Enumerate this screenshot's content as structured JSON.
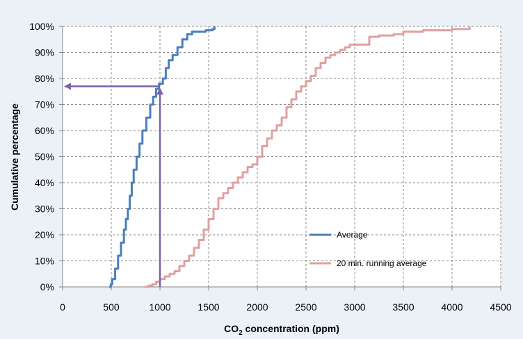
{
  "chart_data": {
    "type": "line",
    "title": "",
    "xlabel": "CO2 concentration (ppm)",
    "xlabel_parts": {
      "main": "CO",
      "sub": "2",
      "rest": " concentration (ppm)"
    },
    "ylabel": "Cumulative percentage",
    "xlim": [
      0,
      4500
    ],
    "ylim": [
      0,
      100
    ],
    "x_ticks": [
      0,
      500,
      1000,
      1500,
      2000,
      2500,
      3000,
      3500,
      4000,
      4500
    ],
    "y_ticks": [
      "0%",
      "10%",
      "20%",
      "30%",
      "40%",
      "50%",
      "60%",
      "70%",
      "80%",
      "90%",
      "100%"
    ],
    "grid": true,
    "legend_position": "bottom-right",
    "series": [
      {
        "name": "Average",
        "color": "#4a7ebb",
        "points": [
          [
            480,
            0
          ],
          [
            495,
            1
          ],
          [
            510,
            3
          ],
          [
            540,
            7
          ],
          [
            570,
            12
          ],
          [
            600,
            17
          ],
          [
            630,
            22
          ],
          [
            650,
            26
          ],
          [
            670,
            30
          ],
          [
            690,
            35
          ],
          [
            710,
            40
          ],
          [
            730,
            45
          ],
          [
            760,
            50
          ],
          [
            790,
            55
          ],
          [
            820,
            60
          ],
          [
            860,
            65
          ],
          [
            900,
            70
          ],
          [
            930,
            73
          ],
          [
            960,
            76
          ],
          [
            990,
            78
          ],
          [
            1030,
            80
          ],
          [
            1060,
            84
          ],
          [
            1090,
            87
          ],
          [
            1130,
            89
          ],
          [
            1180,
            92
          ],
          [
            1230,
            95
          ],
          [
            1280,
            97
          ],
          [
            1330,
            98
          ],
          [
            1420,
            98
          ],
          [
            1470,
            98.5
          ],
          [
            1540,
            99
          ],
          [
            1560,
            100
          ]
        ]
      },
      {
        "name": "20 min. running average",
        "color": "#e0a0a0",
        "points": [
          [
            840,
            0
          ],
          [
            880,
            0.5
          ],
          [
            920,
            1
          ],
          [
            960,
            2
          ],
          [
            1000,
            3
          ],
          [
            1050,
            4
          ],
          [
            1100,
            5
          ],
          [
            1150,
            6
          ],
          [
            1200,
            8
          ],
          [
            1250,
            10
          ],
          [
            1300,
            12
          ],
          [
            1350,
            15
          ],
          [
            1400,
            18
          ],
          [
            1450,
            22
          ],
          [
            1500,
            26
          ],
          [
            1550,
            30
          ],
          [
            1600,
            34
          ],
          [
            1650,
            36
          ],
          [
            1700,
            38
          ],
          [
            1750,
            40
          ],
          [
            1800,
            42
          ],
          [
            1850,
            44
          ],
          [
            1900,
            46
          ],
          [
            1950,
            47
          ],
          [
            2000,
            50
          ],
          [
            2050,
            54
          ],
          [
            2100,
            57
          ],
          [
            2150,
            60
          ],
          [
            2200,
            62
          ],
          [
            2250,
            65
          ],
          [
            2300,
            69
          ],
          [
            2350,
            72
          ],
          [
            2400,
            75
          ],
          [
            2450,
            77
          ],
          [
            2500,
            79
          ],
          [
            2550,
            81
          ],
          [
            2600,
            84
          ],
          [
            2650,
            86
          ],
          [
            2700,
            88
          ],
          [
            2750,
            89
          ],
          [
            2800,
            90
          ],
          [
            2850,
            91
          ],
          [
            2900,
            92
          ],
          [
            2950,
            93
          ],
          [
            3000,
            93
          ],
          [
            3150,
            96
          ],
          [
            3250,
            96.5
          ],
          [
            3400,
            97
          ],
          [
            3500,
            98
          ],
          [
            3700,
            98.5
          ],
          [
            4000,
            99
          ],
          [
            4180,
            100
          ]
        ]
      }
    ],
    "annotation": {
      "type": "arrow-path",
      "color": "#7a62a8",
      "x_value": 1000,
      "y_value": 77
    }
  }
}
